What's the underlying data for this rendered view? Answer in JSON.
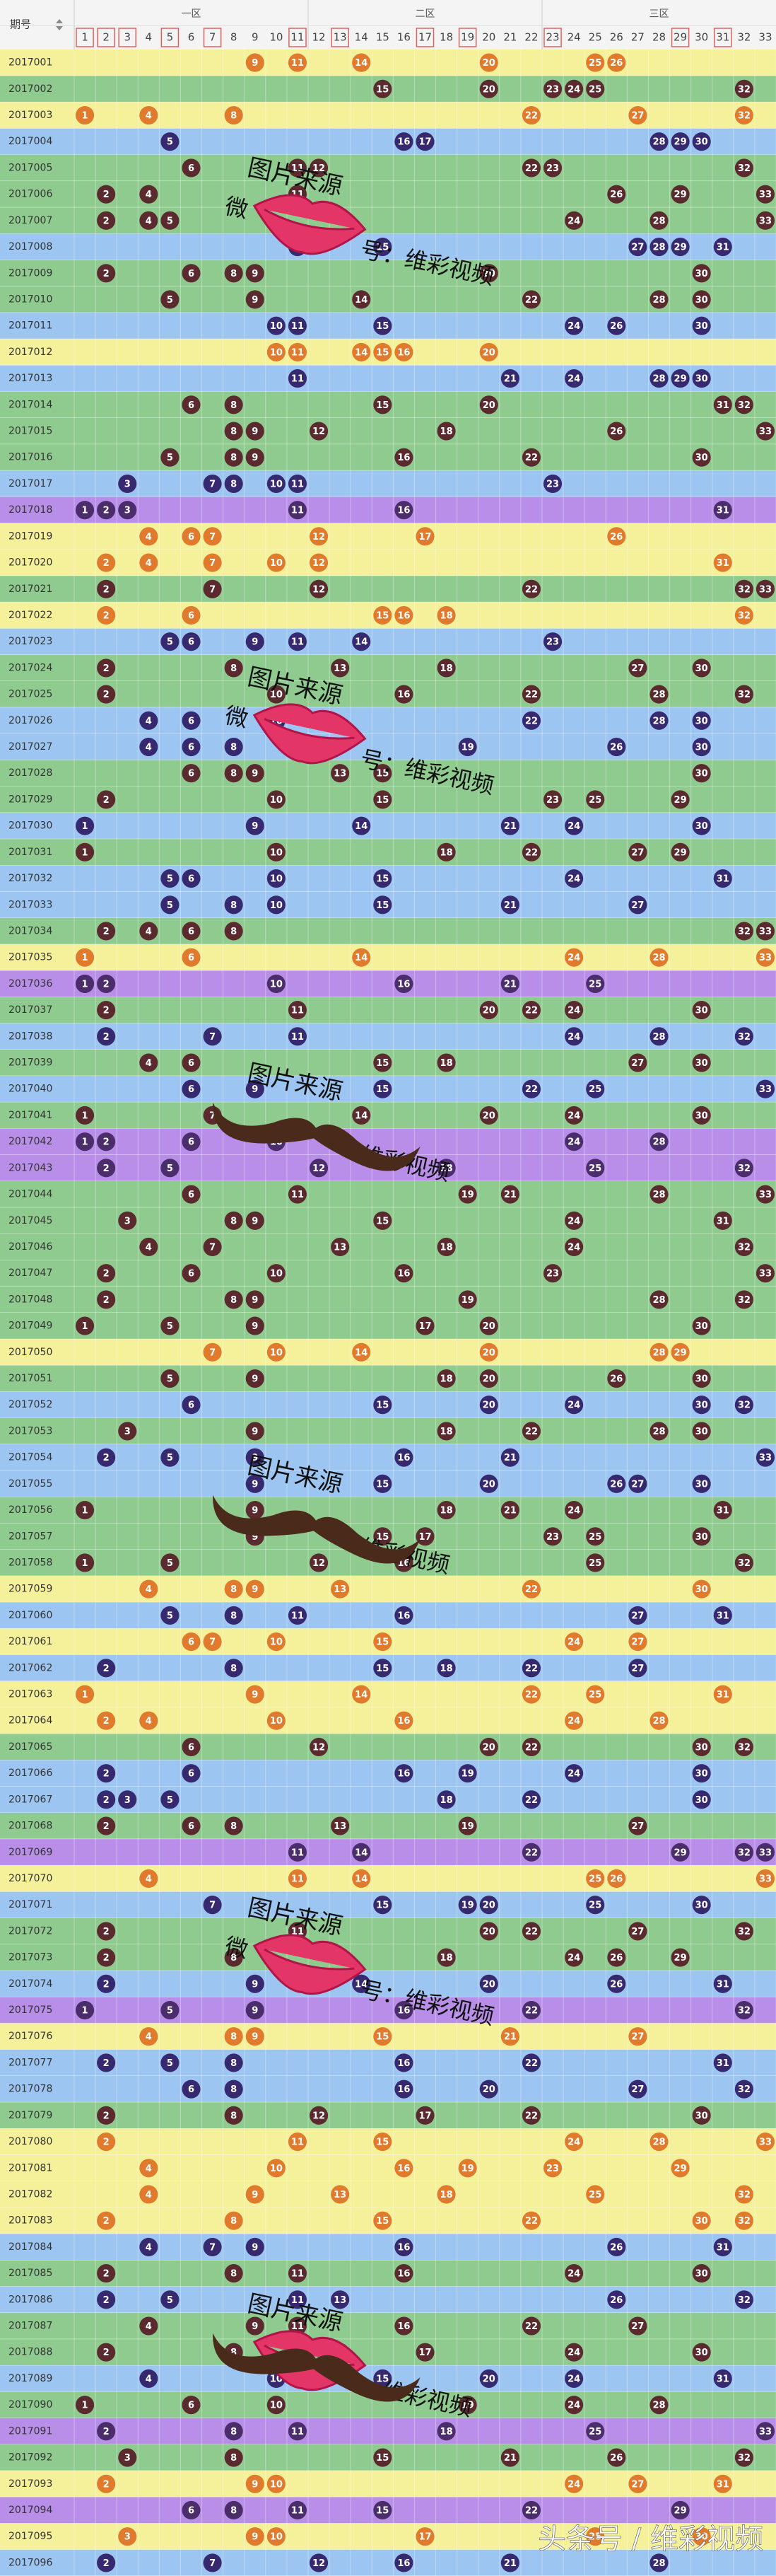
{
  "header": {
    "period_label": "期号",
    "zones": [
      "一区",
      "二区",
      "三区"
    ],
    "columns": [
      1,
      2,
      3,
      4,
      5,
      6,
      7,
      8,
      9,
      10,
      11,
      12,
      13,
      14,
      15,
      16,
      17,
      18,
      19,
      20,
      21,
      22,
      23,
      24,
      25,
      26,
      27,
      28,
      29,
      30,
      31,
      32,
      33
    ],
    "boxed": [
      1,
      2,
      3,
      5,
      7,
      11,
      13,
      17,
      19,
      23,
      29,
      31
    ]
  },
  "row_colors": {
    "y": "#f5f09a",
    "g": "#8fcb8f",
    "b": "#9cc5f2",
    "p": "#b88ee8"
  },
  "ball_colors": {
    "y": "#e07a2c",
    "g": "#5b2a2e",
    "b": "#36296f",
    "p": "#4b2d6c"
  },
  "rows": [
    {
      "period": "2017001",
      "color": "y",
      "balls": [
        9,
        11,
        14,
        20,
        25,
        26
      ]
    },
    {
      "period": "2017002",
      "color": "g",
      "balls": [
        15,
        20,
        23,
        24,
        25,
        32
      ]
    },
    {
      "period": "2017003",
      "color": "y",
      "balls": [
        1,
        4,
        8,
        22,
        27,
        32
      ]
    },
    {
      "period": "2017004",
      "color": "b",
      "balls": [
        5,
        16,
        17,
        28,
        29,
        30
      ]
    },
    {
      "period": "2017005",
      "color": "g",
      "balls": [
        6,
        11,
        12,
        22,
        23,
        32
      ]
    },
    {
      "period": "2017006",
      "color": "g",
      "balls": [
        2,
        4,
        11,
        26,
        29,
        33
      ]
    },
    {
      "period": "2017007",
      "color": "g",
      "balls": [
        2,
        4,
        5,
        24,
        28,
        33
      ]
    },
    {
      "period": "2017008",
      "color": "b",
      "balls": [
        11,
        15,
        27,
        28,
        29,
        31
      ]
    },
    {
      "period": "2017009",
      "color": "g",
      "balls": [
        2,
        6,
        8,
        9,
        20,
        30
      ]
    },
    {
      "period": "2017010",
      "color": "g",
      "balls": [
        5,
        9,
        14,
        22,
        28,
        30
      ]
    },
    {
      "period": "2017011",
      "color": "b",
      "balls": [
        10,
        11,
        15,
        24,
        26,
        30
      ]
    },
    {
      "period": "2017012",
      "color": "y",
      "balls": [
        10,
        11,
        14,
        15,
        16,
        20
      ]
    },
    {
      "period": "2017013",
      "color": "b",
      "balls": [
        11,
        21,
        24,
        28,
        29,
        30
      ]
    },
    {
      "period": "2017014",
      "color": "g",
      "balls": [
        6,
        8,
        15,
        20,
        31,
        32
      ]
    },
    {
      "period": "2017015",
      "color": "g",
      "balls": [
        8,
        9,
        12,
        18,
        26,
        33
      ]
    },
    {
      "period": "2017016",
      "color": "g",
      "balls": [
        5,
        8,
        9,
        16,
        22,
        30
      ]
    },
    {
      "period": "2017017",
      "color": "b",
      "balls": [
        3,
        7,
        8,
        10,
        11,
        23
      ]
    },
    {
      "period": "2017018",
      "color": "p",
      "balls": [
        1,
        2,
        3,
        11,
        16,
        31
      ]
    },
    {
      "period": "2017019",
      "color": "y",
      "balls": [
        4,
        6,
        7,
        12,
        17,
        26
      ]
    },
    {
      "period": "2017020",
      "color": "y",
      "balls": [
        2,
        4,
        7,
        10,
        12,
        31
      ]
    },
    {
      "period": "2017021",
      "color": "g",
      "balls": [
        2,
        7,
        12,
        22,
        32,
        33
      ]
    },
    {
      "period": "2017022",
      "color": "y",
      "balls": [
        2,
        6,
        15,
        16,
        18,
        32
      ]
    },
    {
      "period": "2017023",
      "color": "b",
      "balls": [
        5,
        6,
        9,
        11,
        14,
        23
      ]
    },
    {
      "period": "2017024",
      "color": "g",
      "balls": [
        2,
        8,
        13,
        18,
        27,
        30
      ]
    },
    {
      "period": "2017025",
      "color": "g",
      "balls": [
        2,
        10,
        16,
        22,
        28,
        32
      ]
    },
    {
      "period": "2017026",
      "color": "b",
      "balls": [
        4,
        6,
        10,
        22,
        28,
        30
      ]
    },
    {
      "period": "2017027",
      "color": "b",
      "balls": [
        4,
        6,
        8,
        19,
        26,
        30
      ]
    },
    {
      "period": "2017028",
      "color": "g",
      "balls": [
        6,
        8,
        9,
        13,
        15,
        30
      ]
    },
    {
      "period": "2017029",
      "color": "g",
      "balls": [
        2,
        10,
        15,
        23,
        25,
        29
      ]
    },
    {
      "period": "2017030",
      "color": "b",
      "balls": [
        1,
        9,
        14,
        21,
        24,
        30
      ]
    },
    {
      "period": "2017031",
      "color": "g",
      "balls": [
        1,
        10,
        18,
        22,
        27,
        29
      ]
    },
    {
      "period": "2017032",
      "color": "b",
      "balls": [
        5,
        6,
        10,
        15,
        24,
        31
      ]
    },
    {
      "period": "2017033",
      "color": "b",
      "balls": [
        5,
        8,
        10,
        15,
        21,
        27
      ]
    },
    {
      "period": "2017034",
      "color": "g",
      "balls": [
        2,
        4,
        6,
        8,
        32,
        33
      ]
    },
    {
      "period": "2017035",
      "color": "y",
      "balls": [
        1,
        6,
        14,
        24,
        28,
        33
      ]
    },
    {
      "period": "2017036",
      "color": "p",
      "balls": [
        1,
        2,
        10,
        16,
        21,
        25
      ]
    },
    {
      "period": "2017037",
      "color": "g",
      "balls": [
        2,
        11,
        20,
        22,
        24,
        30
      ]
    },
    {
      "period": "2017038",
      "color": "b",
      "balls": [
        2,
        7,
        11,
        24,
        28,
        32
      ]
    },
    {
      "period": "2017039",
      "color": "g",
      "balls": [
        4,
        6,
        15,
        18,
        27,
        30
      ]
    },
    {
      "period": "2017040",
      "color": "b",
      "balls": [
        6,
        9,
        15,
        22,
        25,
        33
      ]
    },
    {
      "period": "2017041",
      "color": "g",
      "balls": [
        1,
        7,
        14,
        20,
        24,
        30
      ]
    },
    {
      "period": "2017042",
      "color": "p",
      "balls": [
        1,
        2,
        6,
        10,
        24,
        28
      ]
    },
    {
      "period": "2017043",
      "color": "p",
      "balls": [
        2,
        5,
        12,
        18,
        25,
        32
      ]
    },
    {
      "period": "2017044",
      "color": "g",
      "balls": [
        6,
        11,
        19,
        21,
        28,
        33
      ]
    },
    {
      "period": "2017045",
      "color": "g",
      "balls": [
        3,
        8,
        9,
        15,
        24,
        31
      ]
    },
    {
      "period": "2017046",
      "color": "g",
      "balls": [
        4,
        7,
        13,
        18,
        24,
        32
      ]
    },
    {
      "period": "2017047",
      "color": "g",
      "balls": [
        2,
        6,
        10,
        16,
        23,
        33
      ]
    },
    {
      "period": "2017048",
      "color": "g",
      "balls": [
        2,
        8,
        9,
        19,
        28,
        32
      ]
    },
    {
      "period": "2017049",
      "color": "g",
      "balls": [
        1,
        5,
        9,
        17,
        20,
        30
      ]
    },
    {
      "period": "2017050",
      "color": "y",
      "balls": [
        7,
        10,
        14,
        20,
        28,
        29
      ]
    },
    {
      "period": "2017051",
      "color": "g",
      "balls": [
        5,
        9,
        18,
        20,
        26,
        30
      ]
    },
    {
      "period": "2017052",
      "color": "b",
      "balls": [
        6,
        15,
        20,
        24,
        30,
        32
      ]
    },
    {
      "period": "2017053",
      "color": "g",
      "balls": [
        3,
        9,
        18,
        22,
        28,
        30
      ]
    },
    {
      "period": "2017054",
      "color": "b",
      "balls": [
        2,
        5,
        9,
        16,
        21,
        33
      ]
    },
    {
      "period": "2017055",
      "color": "b",
      "balls": [
        9,
        15,
        20,
        26,
        27,
        30
      ]
    },
    {
      "period": "2017056",
      "color": "g",
      "balls": [
        1,
        9,
        18,
        21,
        24,
        31
      ]
    },
    {
      "period": "2017057",
      "color": "g",
      "balls": [
        9,
        15,
        17,
        23,
        25,
        30
      ]
    },
    {
      "period": "2017058",
      "color": "g",
      "balls": [
        1,
        5,
        12,
        16,
        25,
        32
      ]
    },
    {
      "period": "2017059",
      "color": "y",
      "balls": [
        4,
        8,
        9,
        13,
        22,
        30
      ]
    },
    {
      "period": "2017060",
      "color": "b",
      "balls": [
        5,
        8,
        11,
        16,
        27,
        31
      ]
    },
    {
      "period": "2017061",
      "color": "y",
      "balls": [
        6,
        7,
        10,
        15,
        24,
        27
      ]
    },
    {
      "period": "2017062",
      "color": "b",
      "balls": [
        2,
        8,
        15,
        18,
        22,
        27
      ]
    },
    {
      "period": "2017063",
      "color": "y",
      "balls": [
        1,
        9,
        14,
        22,
        25,
        31
      ]
    },
    {
      "period": "2017064",
      "color": "y",
      "balls": [
        2,
        4,
        10,
        16,
        24,
        28
      ]
    },
    {
      "period": "2017065",
      "color": "g",
      "balls": [
        6,
        12,
        20,
        22,
        30,
        32
      ]
    },
    {
      "period": "2017066",
      "color": "b",
      "balls": [
        2,
        6,
        16,
        19,
        24,
        30
      ]
    },
    {
      "period": "2017067",
      "color": "b",
      "balls": [
        2,
        3,
        5,
        18,
        22,
        30
      ]
    },
    {
      "period": "2017068",
      "color": "g",
      "balls": [
        2,
        6,
        8,
        13,
        19,
        27
      ]
    },
    {
      "period": "2017069",
      "color": "p",
      "balls": [
        11,
        14,
        22,
        29,
        32,
        33
      ]
    },
    {
      "period": "2017070",
      "color": "y",
      "balls": [
        4,
        11,
        14,
        25,
        26,
        33
      ]
    },
    {
      "period": "2017071",
      "color": "b",
      "balls": [
        7,
        15,
        19,
        20,
        25,
        30
      ]
    },
    {
      "period": "2017072",
      "color": "g",
      "balls": [
        2,
        11,
        20,
        22,
        27,
        32
      ]
    },
    {
      "period": "2017073",
      "color": "g",
      "balls": [
        2,
        8,
        18,
        24,
        26,
        29
      ]
    },
    {
      "period": "2017074",
      "color": "b",
      "balls": [
        2,
        9,
        14,
        20,
        26,
        31
      ]
    },
    {
      "period": "2017075",
      "color": "p",
      "balls": [
        1,
        5,
        9,
        16,
        22,
        32
      ]
    },
    {
      "period": "2017076",
      "color": "y",
      "balls": [
        4,
        8,
        9,
        15,
        21,
        27
      ]
    },
    {
      "period": "2017077",
      "color": "b",
      "balls": [
        2,
        5,
        8,
        16,
        22,
        31
      ]
    },
    {
      "period": "2017078",
      "color": "b",
      "balls": [
        6,
        8,
        16,
        20,
        27,
        32
      ]
    },
    {
      "period": "2017079",
      "color": "g",
      "balls": [
        2,
        8,
        12,
        17,
        22,
        30
      ]
    },
    {
      "period": "2017080",
      "color": "y",
      "balls": [
        2,
        11,
        15,
        24,
        28,
        33
      ]
    },
    {
      "period": "2017081",
      "color": "y",
      "balls": [
        4,
        10,
        16,
        19,
        23,
        29
      ]
    },
    {
      "period": "2017082",
      "color": "y",
      "balls": [
        4,
        9,
        13,
        18,
        25,
        32
      ]
    },
    {
      "period": "2017083",
      "color": "y",
      "balls": [
        2,
        8,
        15,
        22,
        30,
        32
      ]
    },
    {
      "period": "2017084",
      "color": "b",
      "balls": [
        4,
        7,
        9,
        16,
        26,
        31
      ]
    },
    {
      "period": "2017085",
      "color": "g",
      "balls": [
        2,
        8,
        11,
        16,
        24,
        30
      ]
    },
    {
      "period": "2017086",
      "color": "b",
      "balls": [
        2,
        5,
        11,
        13,
        26,
        32
      ]
    },
    {
      "period": "2017087",
      "color": "g",
      "balls": [
        4,
        9,
        11,
        16,
        22,
        27
      ]
    },
    {
      "period": "2017088",
      "color": "g",
      "balls": [
        2,
        8,
        13,
        17,
        24,
        30
      ]
    },
    {
      "period": "2017089",
      "color": "b",
      "balls": [
        4,
        10,
        15,
        20,
        24,
        31
      ]
    },
    {
      "period": "2017090",
      "color": "g",
      "balls": [
        1,
        6,
        10,
        19,
        24,
        28
      ]
    },
    {
      "period": "2017091",
      "color": "p",
      "balls": [
        2,
        8,
        11,
        18,
        25,
        33
      ]
    },
    {
      "period": "2017092",
      "color": "g",
      "balls": [
        3,
        8,
        15,
        21,
        26,
        32
      ]
    },
    {
      "period": "2017093",
      "color": "y",
      "balls": [
        2,
        9,
        10,
        24,
        27,
        31
      ]
    },
    {
      "period": "2017094",
      "color": "p",
      "balls": [
        6,
        8,
        11,
        15,
        22,
        29
      ]
    },
    {
      "period": "2017095",
      "color": "y",
      "balls": [
        3,
        9,
        10,
        17,
        25,
        30
      ]
    },
    {
      "period": "2017096",
      "color": "b",
      "balls": [
        2,
        7,
        12,
        16,
        21,
        28
      ]
    }
  ],
  "watermarks": [
    {
      "top": "图片来源",
      "left": "微",
      "right": "号：维彩视频"
    },
    {
      "top": "图片来源",
      "left": "微",
      "right": "号：维彩视频"
    },
    {
      "top": "图片来源",
      "right": "维彩视频"
    },
    {
      "top": "图片来源",
      "right": "维彩视频"
    },
    {
      "top": "图片来源",
      "left": "微",
      "right": "号：维彩视频"
    },
    {
      "top": "图片来源",
      "right": "：维彩视频"
    }
  ],
  "footer": "头条号 / 维彩视频"
}
